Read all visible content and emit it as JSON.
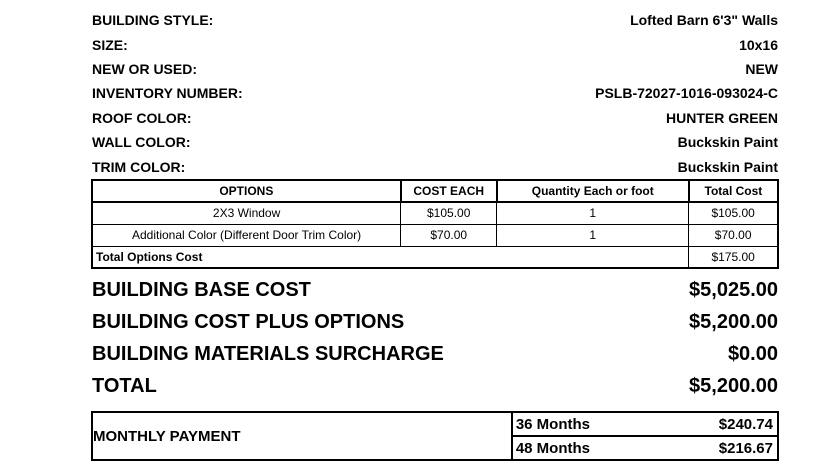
{
  "page": {
    "background_color": "#ffffff",
    "text_color": "#000000"
  },
  "specs": [
    {
      "label": "BUILDING STYLE:",
      "value": "Lofted Barn 6'3\" Walls"
    },
    {
      "label": "SIZE:",
      "value": "10x16"
    },
    {
      "label": "NEW OR USED:",
      "value": "NEW"
    },
    {
      "label": "INVENTORY NUMBER:",
      "value": "PSLB-72027-1016-093024-C"
    },
    {
      "label": "ROOF COLOR:",
      "value": "HUNTER GREEN"
    },
    {
      "label": "WALL COLOR:",
      "value": "Buckskin Paint"
    },
    {
      "label": "TRIM COLOR:",
      "value": "Buckskin Paint"
    }
  ],
  "options_table": {
    "headers": [
      "OPTIONS",
      "COST EACH",
      "Quantity Each or foot",
      "Total Cost"
    ],
    "rows": [
      {
        "option": "2X3 Window",
        "cost_each": "$105.00",
        "quantity": "1",
        "total_cost": "$105.00"
      },
      {
        "option": "Additional Color (Different Door Trim Color)",
        "cost_each": "$70.00",
        "quantity": "1",
        "total_cost": "$70.00"
      }
    ],
    "footer": {
      "label": "Total Options Cost",
      "total": "$175.00"
    }
  },
  "summary": [
    {
      "label": "BUILDING BASE COST",
      "value": "$5,025.00"
    },
    {
      "label": "BUILDING COST PLUS OPTIONS",
      "value": "$5,200.00"
    },
    {
      "label": "BUILDING MATERIALS SURCHARGE",
      "value": "$0.00"
    },
    {
      "label": "TOTAL",
      "value": "$5,200.00"
    }
  ],
  "monthly_payment": {
    "label": "MONTHLY PAYMENT",
    "terms": [
      {
        "term": "36 Months",
        "amount": "$240.74"
      },
      {
        "term": "48 Months",
        "amount": "$216.67"
      }
    ]
  }
}
